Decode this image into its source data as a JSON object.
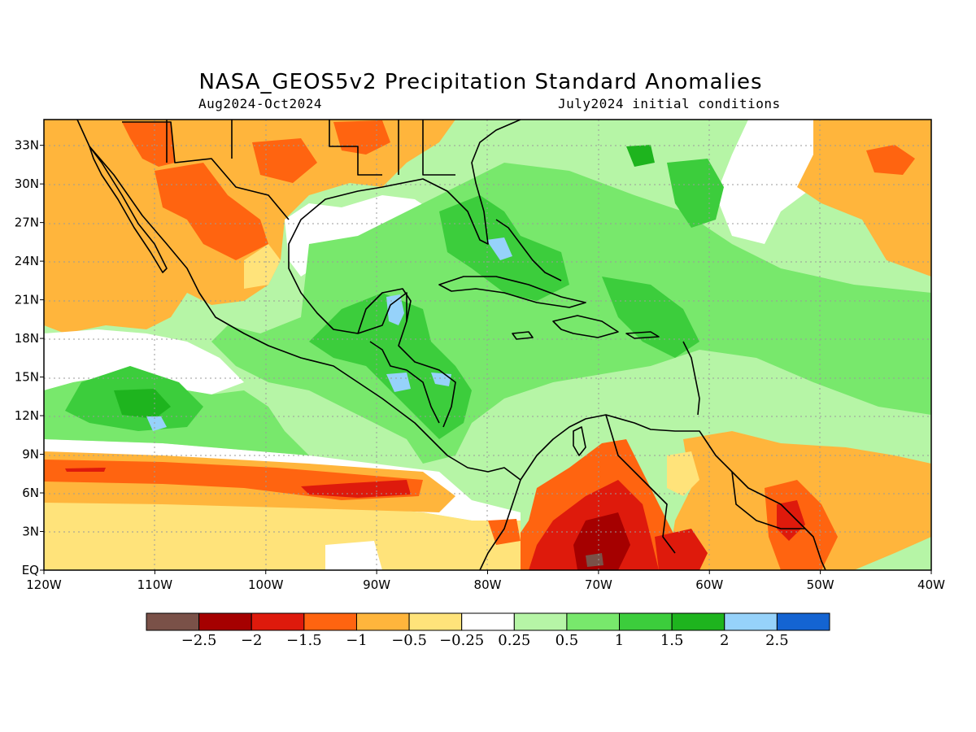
{
  "title": "NASA_GEOS5v2 Precipitation Standard Anomalies",
  "period": "Aug2024-Oct2024",
  "initial_conditions": "July2024 initial conditions",
  "axes": {
    "lon_labels": [
      "120W",
      "110W",
      "100W",
      "90W",
      "80W",
      "70W",
      "60W",
      "50W",
      "40W"
    ],
    "lat_labels": [
      "EQ",
      "3N",
      "6N",
      "9N",
      "12N",
      "15N",
      "18N",
      "21N",
      "24N",
      "27N",
      "30N",
      "33N"
    ]
  },
  "colorbar": {
    "colors": [
      "#7a5148",
      "#a50000",
      "#de1a0c",
      "#ff6410",
      "#ffb53c",
      "#ffe37a",
      "#ffffff",
      "#b6f5a6",
      "#78e86c",
      "#3ccd3c",
      "#1eb41e",
      "#96d2fa",
      "#1464d2"
    ],
    "labels": [
      "−2.5",
      "−2",
      "−1.5",
      "−1",
      "−0.5",
      "−0.25",
      "0.25",
      "0.5",
      "1",
      "1.5",
      "2",
      "2.5"
    ]
  },
  "map_colors": {
    "ocean_neutral": "#ffffff",
    "coastline": "#000000",
    "grid": "#9a9a9a"
  }
}
